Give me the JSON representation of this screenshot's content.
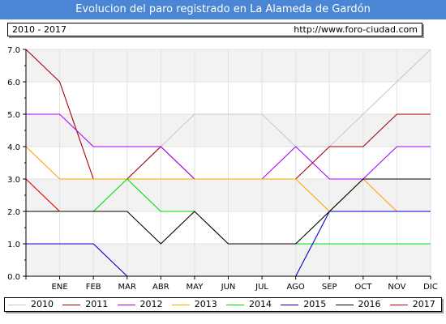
{
  "header": {
    "title": "Evolucion del paro registrado en La Alameda de Gardón",
    "period": "2010 - 2017",
    "url": "http://www.foro-ciudad.com"
  },
  "chart_data": {
    "type": "line",
    "categories": [
      "",
      "ENE",
      "FEB",
      "MAR",
      "ABR",
      "MAY",
      "JUN",
      "JUL",
      "AGO",
      "SEP",
      "OCT",
      "NOV",
      "DIC"
    ],
    "y_ticks": [
      "0.0",
      "1.0",
      "2.0",
      "3.0",
      "4.0",
      "5.0",
      "6.0",
      "7.0"
    ],
    "ylim": [
      0,
      7
    ],
    "grid": true,
    "legend_position": "bottom",
    "series": [
      {
        "name": "2010",
        "color": "#c8c8c8",
        "values": [
          null,
          null,
          null,
          3,
          4,
          5,
          5,
          5,
          4,
          4,
          5,
          6,
          7
        ]
      },
      {
        "name": "2011",
        "color": "#aa0000",
        "values": [
          7,
          6,
          3,
          3,
          4,
          3,
          3,
          3,
          3,
          4,
          4,
          5,
          5
        ]
      },
      {
        "name": "2012",
        "color": "#aa00ff",
        "values": [
          5,
          5,
          4,
          4,
          4,
          3,
          3,
          3,
          4,
          3,
          3,
          4,
          4
        ]
      },
      {
        "name": "2013",
        "color": "#ffa500",
        "values": [
          4,
          3,
          3,
          3,
          3,
          3,
          3,
          3,
          3,
          2,
          3,
          2,
          null
        ]
      },
      {
        "name": "2014",
        "color": "#00dd00",
        "values": [
          null,
          null,
          2,
          3,
          2,
          2,
          null,
          null,
          1,
          1,
          1,
          1,
          1
        ]
      },
      {
        "name": "2015",
        "color": "#0000cc",
        "values": [
          1,
          1,
          1,
          0,
          null,
          null,
          null,
          null,
          0,
          2,
          2,
          2,
          2
        ]
      },
      {
        "name": "2016",
        "color": "#000000",
        "values": [
          2,
          2,
          2,
          2,
          1,
          2,
          1,
          1,
          1,
          2,
          3,
          3,
          3
        ]
      },
      {
        "name": "2017",
        "color": "#dd0000",
        "values": [
          3,
          2,
          null,
          null,
          null,
          null,
          null,
          null,
          null,
          null,
          null,
          null,
          null
        ]
      }
    ]
  }
}
